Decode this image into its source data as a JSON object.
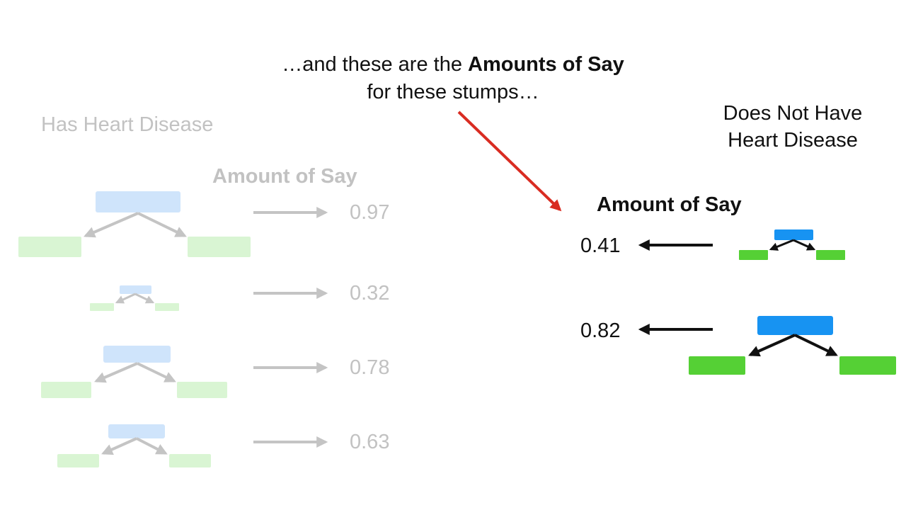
{
  "annotation": {
    "prefix": "…and these are the ",
    "bold": "Amounts of Say",
    "line2": "for these stumps…"
  },
  "left_group": {
    "title": "Has Heart Disease",
    "header": "Amount of Say",
    "stumps": [
      {
        "amount_of_say": "0.97"
      },
      {
        "amount_of_say": "0.32"
      },
      {
        "amount_of_say": "0.78"
      },
      {
        "amount_of_say": "0.63"
      }
    ]
  },
  "right_group": {
    "title_line1": "Does Not Have",
    "title_line2": "Heart Disease",
    "header": "Amount of Say",
    "stumps": [
      {
        "amount_of_say": "0.41"
      },
      {
        "amount_of_say": "0.82"
      }
    ]
  },
  "colors": {
    "faded_root": "#cfe4fb",
    "faded_leaf": "#d9f5d3",
    "faded_arrow": "#c4c4c4",
    "faded_text": "#c2c2c2",
    "root": "#1793f2",
    "leaf": "#55d035",
    "arrow": "#111111",
    "pointer": "#d92c22"
  }
}
